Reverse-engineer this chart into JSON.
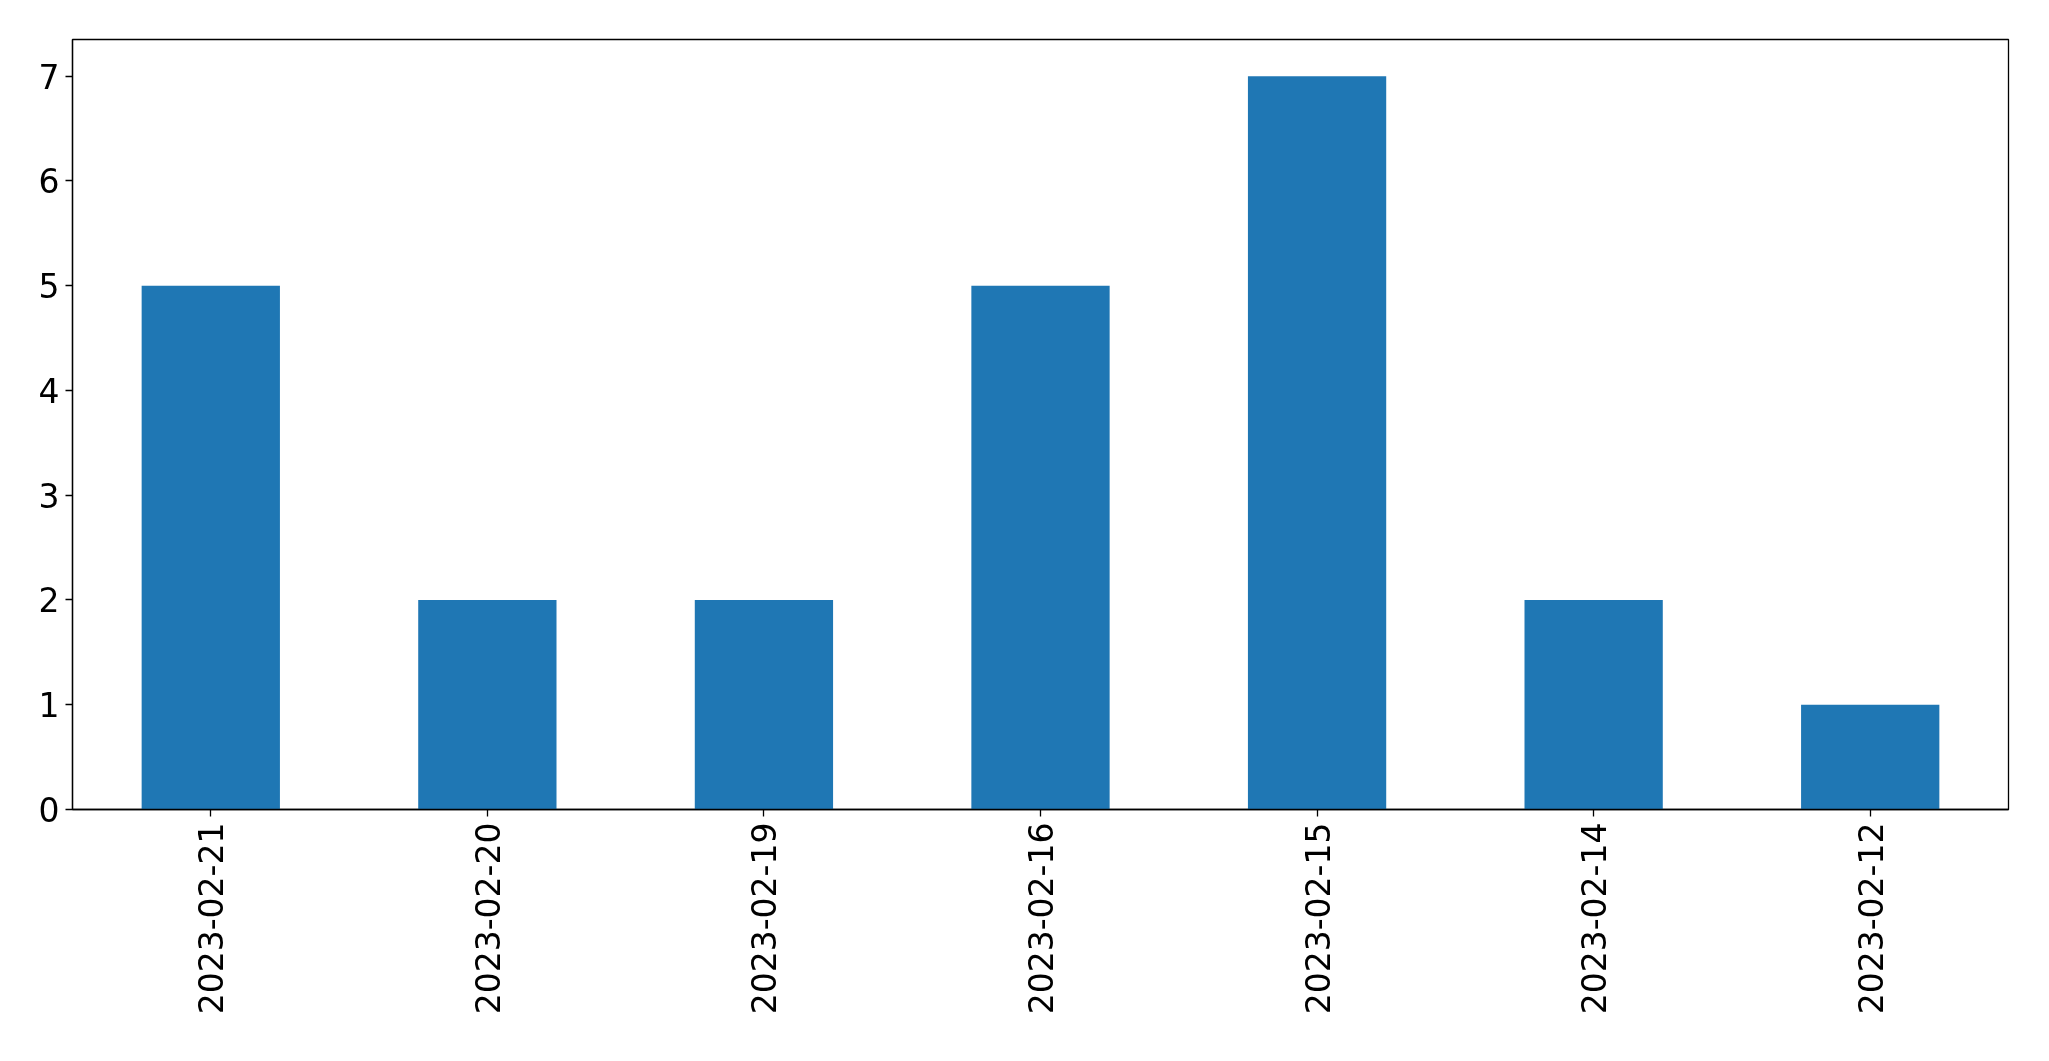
{
  "chart_data": {
    "type": "bar",
    "categories": [
      "2023-02-21",
      "2023-02-20",
      "2023-02-19",
      "2023-02-16",
      "2023-02-15",
      "2023-02-14",
      "2023-02-12"
    ],
    "values": [
      5,
      2,
      2,
      5,
      7,
      2,
      1
    ],
    "color": "#1f77b4",
    "ylim": [
      0,
      7.35
    ],
    "yticks": [
      0,
      1,
      2,
      3,
      4,
      5,
      6,
      7
    ]
  }
}
